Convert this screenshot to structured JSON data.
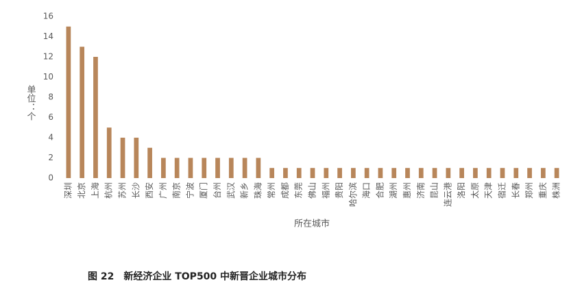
{
  "chart_data": {
    "type": "bar",
    "y_label": "单位：个",
    "x_label": "所在城市",
    "caption": "图 22　新经济企业 TOP500 中新晋企业城市分布",
    "categories": [
      "深圳",
      "北京",
      "上海",
      "杭州",
      "苏州",
      "长沙",
      "西安",
      "广州",
      "南京",
      "宁波",
      "厦门",
      "台州",
      "武汉",
      "新乡",
      "珠海",
      "常州",
      "成都",
      "东莞",
      "佛山",
      "福州",
      "贵阳",
      "哈尔滨",
      "海口",
      "合肥",
      "湖州",
      "惠州",
      "济南",
      "昆山",
      "连云港",
      "洛阳",
      "太原",
      "天津",
      "宿迁",
      "长春",
      "郑州",
      "重庆",
      "株洲"
    ],
    "values": [
      15,
      13,
      12,
      5,
      4,
      4,
      3,
      2,
      2,
      2,
      2,
      2,
      2,
      2,
      2,
      1,
      1,
      1,
      1,
      1,
      1,
      1,
      1,
      1,
      1,
      1,
      1,
      1,
      1,
      1,
      1,
      1,
      1,
      1,
      1,
      1,
      1
    ],
    "color": "#b8865a",
    "ylim": [
      0,
      16
    ],
    "yticks": [
      0,
      2,
      4,
      6,
      8,
      10,
      12,
      14,
      16
    ]
  }
}
